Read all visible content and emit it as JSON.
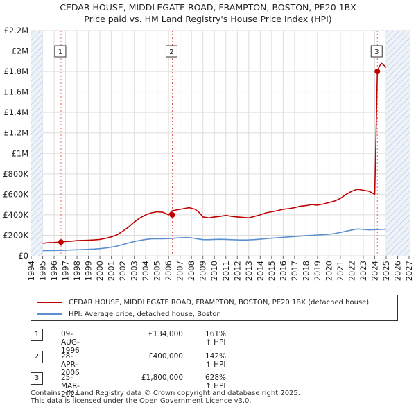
{
  "title_line1": "CEDAR HOUSE, MIDDLEGATE ROAD, FRAMPTON, BOSTON, PE20 1BX",
  "title_line2": "Price paid vs. HM Land Registry's House Price Index (HPI)",
  "colors": {
    "property": "#c00000",
    "hpi": "#5b8fd0",
    "marker_line": "#e06060",
    "hatch": "#c8d4e8"
  },
  "chart_data": {
    "type": "line",
    "xlim": [
      1994,
      2027
    ],
    "ylim": [
      0,
      2200000
    ],
    "x_ticks": [
      "1994",
      "1995",
      "1996",
      "1997",
      "1998",
      "1999",
      "2000",
      "2001",
      "2002",
      "2003",
      "2004",
      "2005",
      "2006",
      "2007",
      "2008",
      "2009",
      "2010",
      "2011",
      "2012",
      "2013",
      "2014",
      "2015",
      "2016",
      "2017",
      "2018",
      "2019",
      "2020",
      "2021",
      "2022",
      "2023",
      "2024",
      "2025",
      "2026",
      "2027"
    ],
    "y_ticks": [
      {
        "value": 0,
        "label": "£0"
      },
      {
        "value": 200000,
        "label": "£200K"
      },
      {
        "value": 400000,
        "label": "£400K"
      },
      {
        "value": 600000,
        "label": "£600K"
      },
      {
        "value": 800000,
        "label": "£800K"
      },
      {
        "value": 1000000,
        "label": "£1M"
      },
      {
        "value": 1200000,
        "label": "£1.2M"
      },
      {
        "value": 1400000,
        "label": "£1.4M"
      },
      {
        "value": 1600000,
        "label": "£1.6M"
      },
      {
        "value": 1800000,
        "label": "£1.8M"
      },
      {
        "value": 2000000,
        "label": "£2M"
      },
      {
        "value": 2200000,
        "label": "£2.2M"
      }
    ],
    "hatch_before": 1995,
    "hatch_after": 2025,
    "series": [
      {
        "name": "CEDAR HOUSE, MIDDLEGATE ROAD, FRAMPTON, BOSTON, PE20 1BX (detached house)",
        "color": "#c00000",
        "x": [
          1995.0,
          1995.5,
          1996.0,
          1996.6,
          1997.0,
          1997.5,
          1998.0,
          1998.5,
          1999.0,
          1999.5,
          2000.0,
          2000.5,
          2001.0,
          2001.5,
          2002.0,
          2002.5,
          2003.0,
          2003.5,
          2004.0,
          2004.5,
          2005.0,
          2005.5,
          2006.0,
          2006.3,
          2006.8,
          2007.3,
          2007.8,
          2008.3,
          2008.7,
          2009.0,
          2009.5,
          2010.0,
          2010.5,
          2011.0,
          2011.5,
          2012.0,
          2012.5,
          2013.0,
          2013.5,
          2014.0,
          2014.5,
          2015.0,
          2015.5,
          2016.0,
          2016.5,
          2017.0,
          2017.5,
          2018.0,
          2018.5,
          2019.0,
          2019.5,
          2020.0,
          2020.5,
          2021.0,
          2021.5,
          2022.0,
          2022.5,
          2023.0,
          2023.5,
          2024.0,
          2024.23,
          2024.4,
          2024.6,
          2024.8,
          2025.0
        ],
        "y": [
          122000,
          128000,
          130000,
          134000,
          140000,
          143000,
          148000,
          150000,
          152000,
          155000,
          160000,
          170000,
          185000,
          205000,
          240000,
          280000,
          330000,
          370000,
          400000,
          420000,
          430000,
          425000,
          400000,
          440000,
          450000,
          460000,
          470000,
          455000,
          420000,
          380000,
          370000,
          380000,
          385000,
          395000,
          385000,
          380000,
          375000,
          370000,
          385000,
          400000,
          420000,
          430000,
          440000,
          455000,
          460000,
          470000,
          485000,
          490000,
          500000,
          495000,
          505000,
          520000,
          535000,
          560000,
          600000,
          630000,
          650000,
          640000,
          630000,
          600000,
          1800000,
          1850000,
          1880000,
          1860000,
          1840000
        ]
      },
      {
        "name": "HPI: Average price, detached house, Boston",
        "color": "#5b8fd0",
        "x": [
          1995.0,
          1995.5,
          1996.0,
          1996.6,
          1997.0,
          1997.5,
          1998.0,
          1998.5,
          1999.0,
          1999.5,
          2000.0,
          2000.5,
          2001.0,
          2001.5,
          2002.0,
          2002.5,
          2003.0,
          2003.5,
          2004.0,
          2004.5,
          2005.0,
          2005.5,
          2006.0,
          2006.5,
          2007.0,
          2007.5,
          2008.0,
          2008.5,
          2009.0,
          2009.5,
          2010.0,
          2010.5,
          2011.0,
          2011.5,
          2012.0,
          2012.5,
          2013.0,
          2013.5,
          2014.0,
          2014.5,
          2015.0,
          2015.5,
          2016.0,
          2016.5,
          2017.0,
          2017.5,
          2018.0,
          2018.5,
          2019.0,
          2019.5,
          2020.0,
          2020.5,
          2021.0,
          2021.5,
          2022.0,
          2022.5,
          2023.0,
          2023.5,
          2024.0,
          2024.5,
          2025.0
        ],
        "y": [
          50000,
          51000,
          52000,
          53000,
          55000,
          57000,
          59000,
          61000,
          63000,
          66000,
          70000,
          76000,
          84000,
          95000,
          110000,
          125000,
          140000,
          150000,
          160000,
          165000,
          167000,
          166000,
          168000,
          172000,
          176000,
          178000,
          175000,
          165000,
          158000,
          157000,
          160000,
          161000,
          160000,
          157000,
          155000,
          154000,
          155000,
          158000,
          162000,
          167000,
          172000,
          176000,
          180000,
          184000,
          188000,
          192000,
          197000,
          200000,
          203000,
          206000,
          210000,
          217000,
          228000,
          240000,
          252000,
          262000,
          258000,
          253000,
          255000,
          258000,
          260000
        ]
      }
    ],
    "sales": [
      {
        "num": "1",
        "x": 1996.6,
        "y": 134000,
        "date": "09-AUG-1996",
        "price": "£134,000",
        "hpi": "161% ↑ HPI"
      },
      {
        "num": "2",
        "x": 2006.32,
        "y": 400000,
        "date": "28-APR-2006",
        "price": "£400,000",
        "hpi": "142% ↑ HPI"
      },
      {
        "num": "3",
        "x": 2024.23,
        "y": 1800000,
        "date": "25-MAR-2024",
        "price": "£1,800,000",
        "hpi": "628% ↑ HPI"
      }
    ]
  },
  "legend": {
    "property_label": "CEDAR HOUSE, MIDDLEGATE ROAD, FRAMPTON, BOSTON, PE20 1BX (detached house)",
    "hpi_label": "HPI: Average price, detached house, Boston"
  },
  "footer_line1": "Contains HM Land Registry data © Crown copyright and database right 2025.",
  "footer_line2": "This data is licensed under the Open Government Licence v3.0."
}
